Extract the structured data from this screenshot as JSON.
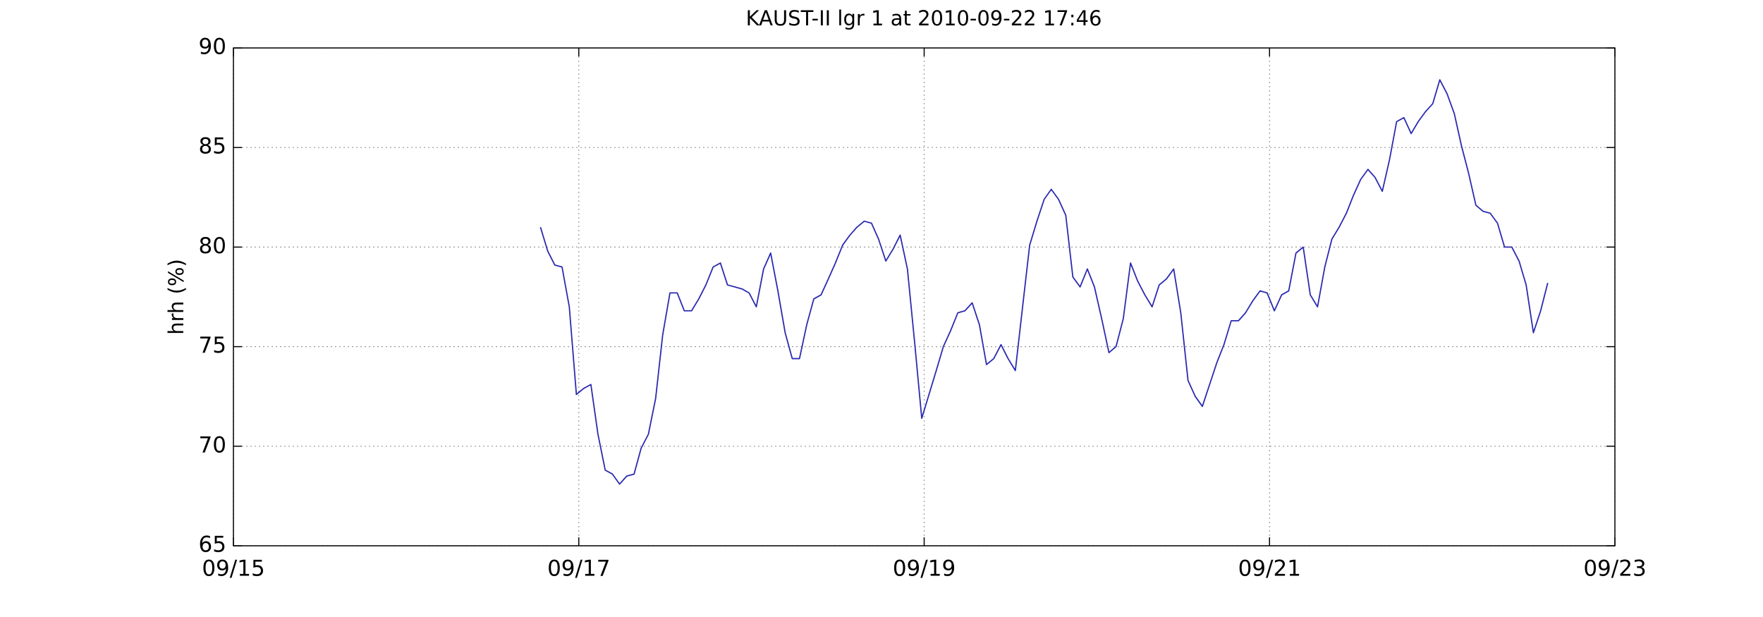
{
  "chart_data": {
    "type": "line",
    "title": "KAUST-II lgr 1 at 2010-09-22 17:46",
    "y_label": "hrh (%)",
    "xlim": [
      15,
      23
    ],
    "xticks": [
      {
        "value": 15,
        "label": "09/15"
      },
      {
        "value": 17,
        "label": "09/17"
      },
      {
        "value": 19,
        "label": "09/19"
      },
      {
        "value": 21,
        "label": "09/21"
      },
      {
        "value": 23,
        "label": "09/23"
      }
    ],
    "ylim": [
      65,
      90
    ],
    "yticks": [
      65,
      70,
      75,
      80,
      85,
      90
    ],
    "grid": true,
    "series": [
      {
        "color": "#2b2bb0",
        "x": [
          16.778,
          16.82,
          16.861,
          16.903,
          16.945,
          16.986,
          17.028,
          17.07,
          17.111,
          17.153,
          17.195,
          17.236,
          17.278,
          17.32,
          17.361,
          17.403,
          17.445,
          17.486,
          17.528,
          17.57,
          17.611,
          17.653,
          17.695,
          17.736,
          17.778,
          17.82,
          17.861,
          17.903,
          17.945,
          17.986,
          18.028,
          18.07,
          18.111,
          18.153,
          18.195,
          18.236,
          18.278,
          18.32,
          18.361,
          18.403,
          18.445,
          18.486,
          18.528,
          18.57,
          18.611,
          18.653,
          18.695,
          18.736,
          18.778,
          18.82,
          18.861,
          18.903,
          18.945,
          18.986,
          19.028,
          19.07,
          19.111,
          19.153,
          19.195,
          19.236,
          19.278,
          19.32,
          19.361,
          19.403,
          19.445,
          19.486,
          19.528,
          19.57,
          19.611,
          19.653,
          19.695,
          19.736,
          19.778,
          19.82,
          19.861,
          19.903,
          19.945,
          19.986,
          20.028,
          20.07,
          20.111,
          20.153,
          20.195,
          20.236,
          20.278,
          20.32,
          20.361,
          20.403,
          20.445,
          20.486,
          20.528,
          20.57,
          20.611,
          20.653,
          20.695,
          20.736,
          20.778,
          20.82,
          20.861,
          20.903,
          20.945,
          20.986,
          21.028,
          21.07,
          21.111,
          21.153,
          21.195,
          21.236,
          21.278,
          21.32,
          21.361,
          21.403,
          21.445,
          21.486,
          21.528,
          21.57,
          21.611,
          21.653,
          21.695,
          21.736,
          21.778,
          21.82,
          21.861,
          21.903,
          21.945,
          21.986,
          22.028,
          22.07,
          22.111,
          22.153,
          22.195,
          22.236,
          22.278,
          22.32,
          22.361,
          22.403,
          22.445,
          22.486,
          22.528,
          22.57,
          22.611
        ],
        "values": [
          81.0,
          79.8,
          79.1,
          79.0,
          77.0,
          72.6,
          72.9,
          73.1,
          70.6,
          68.8,
          68.6,
          68.1,
          68.5,
          68.6,
          69.9,
          70.6,
          72.4,
          75.6,
          77.7,
          77.7,
          76.8,
          76.8,
          77.4,
          78.1,
          79.0,
          79.2,
          78.1,
          78.0,
          77.9,
          77.7,
          77.0,
          78.9,
          79.7,
          77.8,
          75.7,
          74.4,
          74.4,
          76.1,
          77.4,
          77.6,
          78.4,
          79.2,
          80.1,
          80.6,
          81.0,
          81.3,
          81.2,
          80.4,
          79.3,
          79.9,
          80.6,
          78.9,
          75.2,
          71.4,
          72.6,
          73.8,
          75.0,
          75.8,
          76.7,
          76.8,
          77.2,
          76.1,
          74.1,
          74.4,
          75.1,
          74.4,
          73.8,
          77.0,
          80.1,
          81.3,
          82.4,
          82.9,
          82.4,
          81.6,
          78.5,
          78.0,
          78.9,
          78.0,
          76.4,
          74.7,
          75.0,
          76.4,
          79.2,
          78.3,
          77.6,
          77.0,
          78.1,
          78.4,
          78.9,
          76.7,
          73.3,
          72.5,
          72.0,
          73.1,
          74.2,
          75.1,
          76.3,
          76.3,
          76.7,
          77.3,
          77.8,
          77.7,
          76.8,
          77.6,
          77.8,
          79.7,
          80.0,
          77.6,
          77.0,
          79.0,
          80.4,
          81.0,
          81.7,
          82.6,
          83.4,
          83.9,
          83.5,
          82.8,
          84.4,
          86.3,
          86.5,
          85.7,
          86.3,
          86.8,
          87.2,
          88.4,
          87.7,
          86.7,
          85.1,
          83.7,
          82.1,
          81.8,
          81.7,
          81.2,
          80.0,
          80.0,
          79.3,
          78.1,
          75.7,
          76.8,
          78.2
        ]
      }
    ]
  }
}
